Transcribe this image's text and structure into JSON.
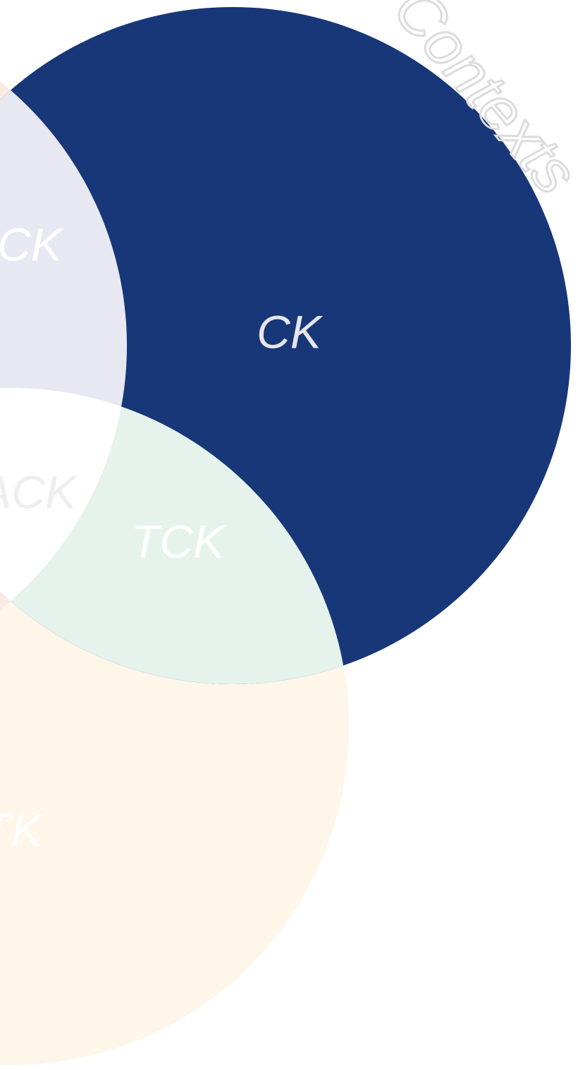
{
  "diagram": {
    "regions": {
      "ck": "CK",
      "pck": "PCK",
      "tpack": "TPACK",
      "tck": "TCK",
      "tk": "TK"
    },
    "context": "Contexts"
  }
}
